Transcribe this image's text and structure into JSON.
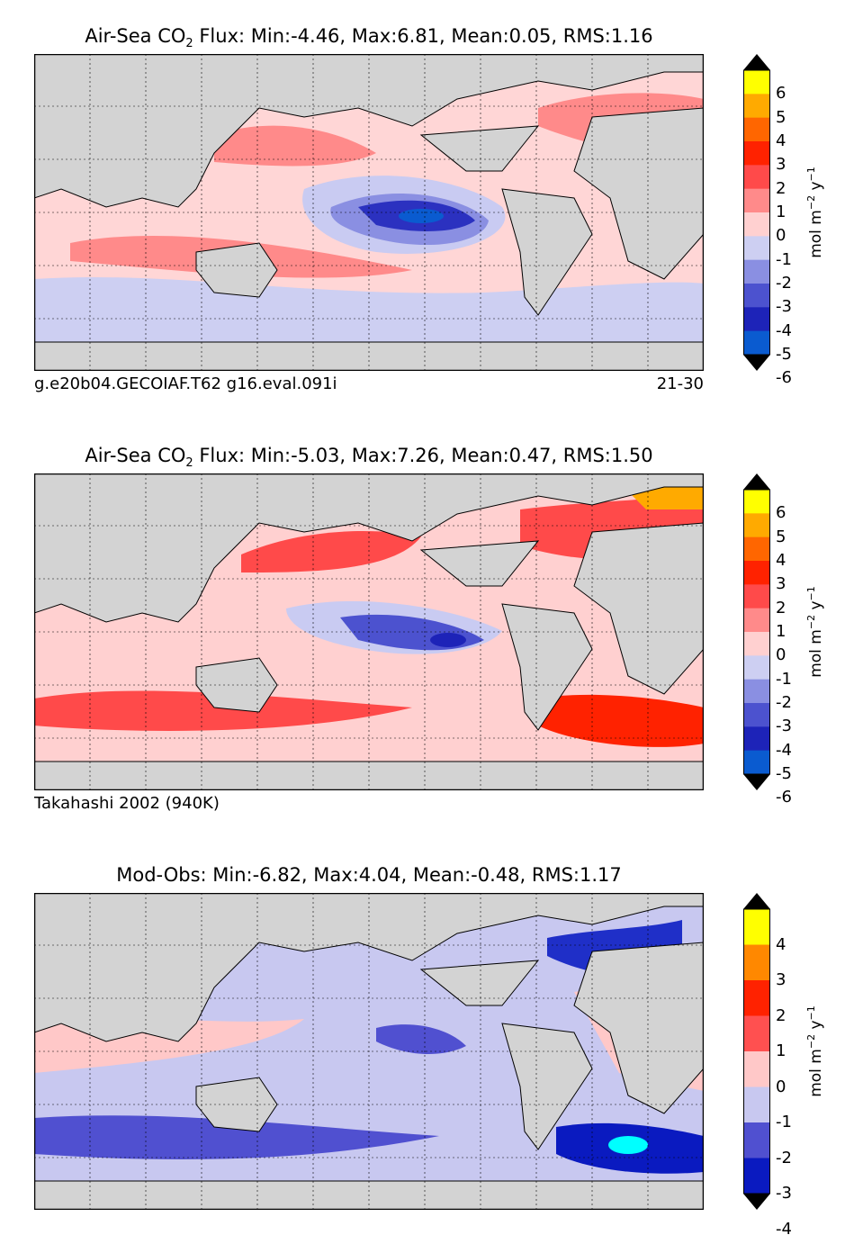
{
  "panels": [
    {
      "title_prefix": "Air-Sea CO",
      "title_sub": "2",
      "title_suffix": " Flux: Min:-4.46, Max:6.81, Mean:0.05, RMS:1.16",
      "caption_left": "g.e20b04.GECOIAF.T62 g16.eval.091i",
      "caption_right": "21-30",
      "colorbar": {
        "ticks": [
          "6",
          "5",
          "4",
          "3",
          "2",
          "1",
          "0",
          "-1",
          "-2",
          "-3",
          "-4",
          "-5",
          "-6"
        ],
        "colors": [
          "#ffff00",
          "#ffaa00",
          "#ff6600",
          "#ff2200",
          "#ff4a4a",
          "#ff8a8a",
          "#ffd0d0",
          "#cdcff2",
          "#8a8fe2",
          "#4c52cf",
          "#1d23b8",
          "#0a5bd0",
          "#05aee0",
          "#00ffff"
        ],
        "unit": "mol m",
        "unit_exp1": "−2",
        "unit_mid": " y",
        "unit_exp2": "−1"
      }
    },
    {
      "title_prefix": "Air-Sea CO",
      "title_sub": "2",
      "title_suffix": " Flux: Min:-5.03, Max:7.26, Mean:0.47, RMS:1.50",
      "caption_left": "Takahashi 2002 (940K)",
      "caption_right": "",
      "colorbar": {
        "ticks": [
          "6",
          "5",
          "4",
          "3",
          "2",
          "1",
          "0",
          "-1",
          "-2",
          "-3",
          "-4",
          "-5",
          "-6"
        ],
        "colors": [
          "#ffff00",
          "#ffaa00",
          "#ff6600",
          "#ff2200",
          "#ff4a4a",
          "#ff8a8a",
          "#ffd0d0",
          "#cdcff2",
          "#8a8fe2",
          "#4c52cf",
          "#1d23b8",
          "#0a5bd0",
          "#05aee0",
          "#00ffff"
        ],
        "unit": "mol m",
        "unit_exp1": "−2",
        "unit_mid": " y",
        "unit_exp2": "−1"
      }
    },
    {
      "title_prefix": "Mod-Obs: Min:-6.82, Max:4.04, Mean:-0.48, RMS:1.17",
      "title_sub": "",
      "title_suffix": "",
      "caption_left": "",
      "caption_right": "",
      "colorbar": {
        "ticks": [
          "4",
          "3",
          "2",
          "1",
          "0",
          "-1",
          "-2",
          "-3",
          "-4"
        ],
        "colors": [
          "#ffff00",
          "#ff8800",
          "#ff2200",
          "#ff5050",
          "#ffc8c8",
          "#c8c8f0",
          "#5050d0",
          "#0a1ac0",
          "#0090e0",
          "#00ffff"
        ],
        "unit": "mol m",
        "unit_exp1": "−2",
        "unit_mid": " y",
        "unit_exp2": "−1"
      }
    }
  ],
  "chart_data": [
    {
      "type": "heatmap",
      "title": "Air-Sea CO2 Flux: Min:-4.46, Max:6.81, Mean:0.05, RMS:1.16",
      "stats": {
        "min": -4.46,
        "max": 6.81,
        "mean": 0.05,
        "rms": 1.16
      },
      "colorbar_ticks": [
        6,
        5,
        4,
        3,
        2,
        1,
        0,
        -1,
        -2,
        -3,
        -4,
        -5,
        -6
      ],
      "colorbar_label": "mol m-2 y-1",
      "colorbar_extend": "both"
    },
    {
      "type": "heatmap",
      "title": "Air-Sea CO2 Flux: Min:-5.03, Max:7.26, Mean:0.47, RMS:1.50",
      "stats": {
        "min": -5.03,
        "max": 7.26,
        "mean": 0.47,
        "rms": 1.5
      },
      "colorbar_ticks": [
        6,
        5,
        4,
        3,
        2,
        1,
        0,
        -1,
        -2,
        -3,
        -4,
        -5,
        -6
      ],
      "colorbar_label": "mol m-2 y-1",
      "colorbar_extend": "both"
    },
    {
      "type": "heatmap",
      "title": "Mod-Obs: Min:-6.82, Max:4.04, Mean:-0.48, RMS:1.17",
      "stats": {
        "min": -6.82,
        "max": 4.04,
        "mean": -0.48,
        "rms": 1.17
      },
      "colorbar_ticks": [
        4,
        3,
        2,
        1,
        0,
        -1,
        -2,
        -3,
        -4
      ],
      "colorbar_label": "mol m-2 y-1",
      "colorbar_extend": "both"
    }
  ]
}
